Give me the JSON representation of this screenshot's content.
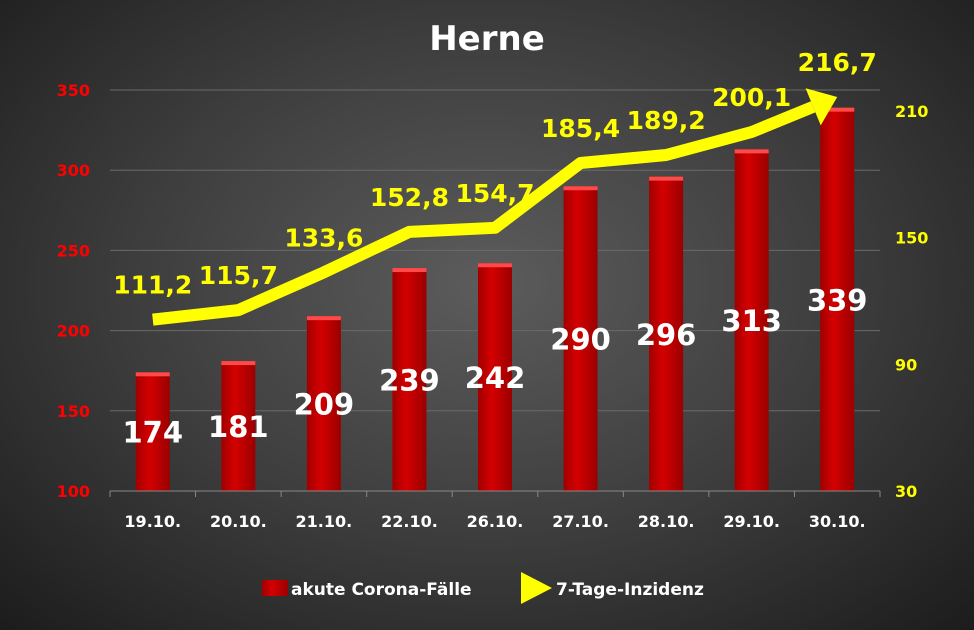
{
  "chart_data": {
    "type": "bar+line",
    "title": "Herne",
    "categories": [
      "19.10.",
      "20.10.",
      "21.10.",
      "22.10.",
      "26.10.",
      "27.10.",
      "28.10.",
      "29.10.",
      "30.10."
    ],
    "series": [
      {
        "name": "akute Corona-Fälle",
        "type": "bar",
        "axis": "left",
        "color": "#cc0000",
        "values": [
          174,
          181,
          209,
          239,
          242,
          290,
          296,
          313,
          339
        ],
        "labels": [
          "174",
          "181",
          "209",
          "239",
          "242",
          "290",
          "296",
          "313",
          "339"
        ]
      },
      {
        "name": "7-Tage-Inzidenz",
        "type": "line",
        "axis": "right",
        "color": "#ffff00",
        "values": [
          111.2,
          115.7,
          133.6,
          152.8,
          154.7,
          185.4,
          189.2,
          200.1,
          216.7
        ],
        "labels": [
          "111,2",
          "115,7",
          "133,6",
          "152,8",
          "154,7",
          "185,4",
          "189,2",
          "200,1",
          "216,7"
        ]
      }
    ],
    "left_axis": {
      "ylim": [
        100,
        350
      ],
      "ticks": [
        100,
        150,
        200,
        250,
        300,
        350
      ],
      "color": "#ff0000"
    },
    "right_axis": {
      "ylim": [
        30,
        220
      ],
      "ticks": [
        30,
        90,
        150,
        210
      ],
      "color": "#ffff00"
    },
    "grid": true,
    "legend": "bottom"
  }
}
